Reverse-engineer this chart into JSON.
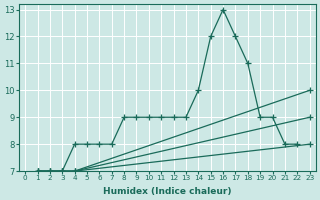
{
  "xlabel": "Humidex (Indice chaleur)",
  "xlim": [
    -0.5,
    23.5
  ],
  "ylim": [
    7,
    13.2
  ],
  "xticks": [
    0,
    1,
    2,
    3,
    4,
    5,
    6,
    7,
    8,
    9,
    10,
    11,
    12,
    13,
    14,
    15,
    16,
    17,
    18,
    19,
    20,
    21,
    22,
    23
  ],
  "yticks": [
    7,
    8,
    9,
    10,
    11,
    12,
    13
  ],
  "bg_color": "#cde8e5",
  "line_color": "#1a6b5a",
  "grid_color": "#b0d8d4",
  "lines": [
    {
      "x": [
        1,
        2,
        3,
        4,
        5,
        6,
        7,
        8,
        9,
        10,
        11,
        12,
        13,
        14,
        15,
        16,
        17,
        18,
        19,
        20,
        21,
        22
      ],
      "y": [
        7,
        7,
        7,
        8,
        8,
        8,
        8,
        9,
        9,
        9,
        9,
        9,
        9,
        10,
        12,
        13,
        12,
        11,
        9,
        9,
        8,
        8
      ]
    },
    {
      "x": [
        1,
        2,
        3,
        4,
        23
      ],
      "y": [
        7,
        7,
        7,
        7,
        10
      ]
    },
    {
      "x": [
        1,
        2,
        3,
        4,
        23
      ],
      "y": [
        7,
        7,
        7,
        7,
        9
      ]
    },
    {
      "x": [
        1,
        2,
        3,
        4,
        23
      ],
      "y": [
        7,
        7,
        7,
        7,
        8
      ]
    }
  ]
}
